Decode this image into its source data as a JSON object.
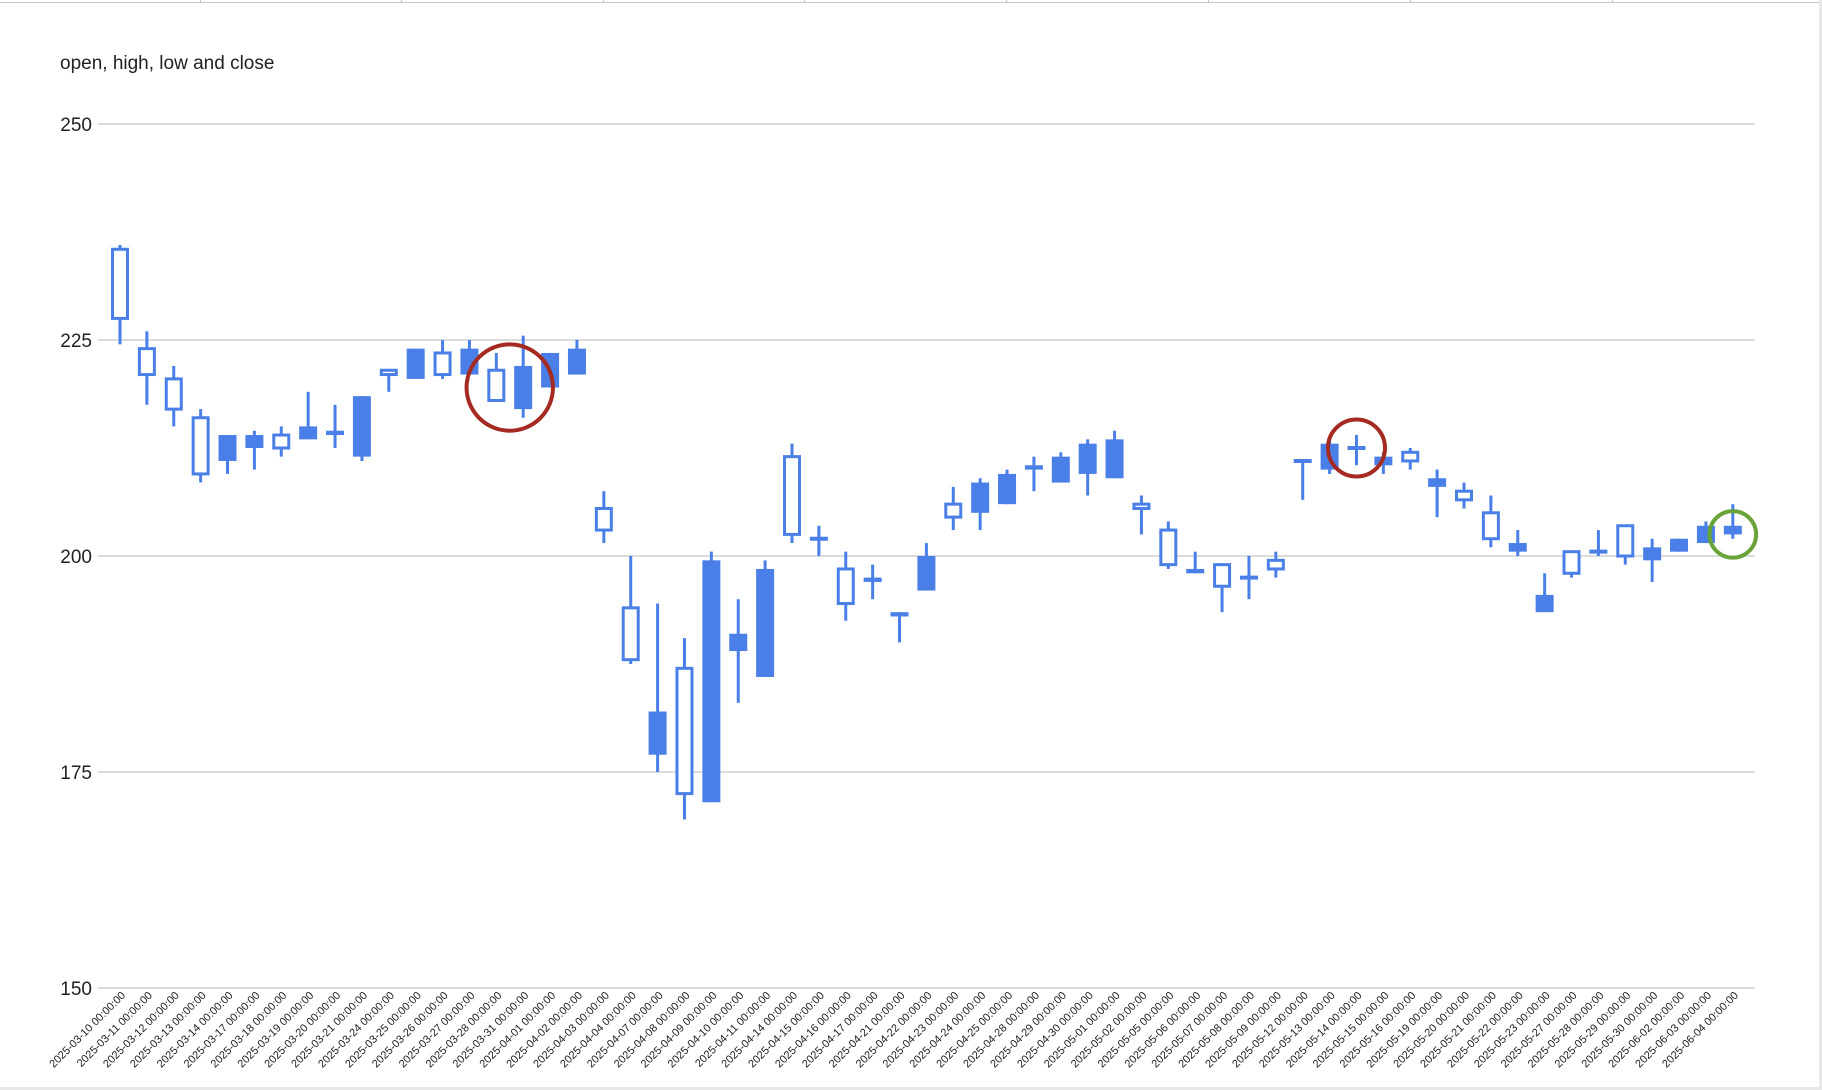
{
  "chart_data": {
    "type": "candlestick",
    "title": "open, high, low and close",
    "xlabel": "",
    "ylabel": "",
    "ylim": [
      150,
      250
    ],
    "yticks": [
      150,
      175,
      200,
      225,
      250
    ],
    "grid": true,
    "legend": "none",
    "colors": {
      "candle": "#4a7fe8",
      "grid": "#c8c8c8",
      "axis_text": "#222222",
      "annotation_red": "#a52a22",
      "annotation_green": "#6aa33a"
    },
    "categories": [
      "2025-03-10 00:00:00",
      "2025-03-11 00:00:00",
      "2025-03-12 00:00:00",
      "2025-03-13 00:00:00",
      "2025-03-14 00:00:00",
      "2025-03-17 00:00:00",
      "2025-03-18 00:00:00",
      "2025-03-19 00:00:00",
      "2025-03-20 00:00:00",
      "2025-03-21 00:00:00",
      "2025-03-24 00:00:00",
      "2025-03-25 00:00:00",
      "2025-03-26 00:00:00",
      "2025-03-27 00:00:00",
      "2025-03-28 00:00:00",
      "2025-03-31 00:00:00",
      "2025-04-01 00:00:00",
      "2025-04-02 00:00:00",
      "2025-04-03 00:00:00",
      "2025-04-04 00:00:00",
      "2025-04-07 00:00:00",
      "2025-04-08 00:00:00",
      "2025-04-09 00:00:00",
      "2025-04-10 00:00:00",
      "2025-04-11 00:00:00",
      "2025-04-14 00:00:00",
      "2025-04-15 00:00:00",
      "2025-04-16 00:00:00",
      "2025-04-17 00:00:00",
      "2025-04-21 00:00:00",
      "2025-04-22 00:00:00",
      "2025-04-23 00:00:00",
      "2025-04-24 00:00:00",
      "2025-04-25 00:00:00",
      "2025-04-28 00:00:00",
      "2025-04-29 00:00:00",
      "2025-04-30 00:00:00",
      "2025-05-01 00:00:00",
      "2025-05-02 00:00:00",
      "2025-05-05 00:00:00",
      "2025-05-06 00:00:00",
      "2025-05-07 00:00:00",
      "2025-05-08 00:00:00",
      "2025-05-09 00:00:00",
      "2025-05-12 00:00:00",
      "2025-05-13 00:00:00",
      "2025-05-14 00:00:00",
      "2025-05-15 00:00:00",
      "2025-05-16 00:00:00",
      "2025-05-19 00:00:00",
      "2025-05-20 00:00:00",
      "2025-05-21 00:00:00",
      "2025-05-22 00:00:00",
      "2025-05-23 00:00:00",
      "2025-05-27 00:00:00",
      "2025-05-28 00:00:00",
      "2025-05-29 00:00:00",
      "2025-05-30 00:00:00",
      "2025-06-02 00:00:00",
      "2025-06-03 00:00:00",
      "2025-06-04 00:00:00"
    ],
    "ohlc": [
      {
        "o": 227.5,
        "h": 236.0,
        "l": 224.5,
        "c": 235.5
      },
      {
        "o": 221.0,
        "h": 226.0,
        "l": 217.5,
        "c": 224.0
      },
      {
        "o": 217.0,
        "h": 222.0,
        "l": 215.0,
        "c": 220.5
      },
      {
        "o": 209.5,
        "h": 217.0,
        "l": 208.5,
        "c": 216.0
      },
      {
        "o": 214.0,
        "h": 214.0,
        "l": 209.5,
        "c": 211.0
      },
      {
        "o": 214.0,
        "h": 214.5,
        "l": 210.0,
        "c": 212.5
      },
      {
        "o": 212.5,
        "h": 215.0,
        "l": 211.5,
        "c": 214.0
      },
      {
        "o": 215.0,
        "h": 219.0,
        "l": 214.0,
        "c": 213.5
      },
      {
        "o": 214.5,
        "h": 217.5,
        "l": 212.5,
        "c": 214.0
      },
      {
        "o": 218.5,
        "h": 218.5,
        "l": 211.0,
        "c": 211.5
      },
      {
        "o": 221.0,
        "h": 221.5,
        "l": 219.0,
        "c": 221.5
      },
      {
        "o": 224.0,
        "h": 224.0,
        "l": 220.5,
        "c": 220.5
      },
      {
        "o": 221.0,
        "h": 225.0,
        "l": 220.5,
        "c": 223.5
      },
      {
        "o": 224.0,
        "h": 225.0,
        "l": 221.0,
        "c": 221.0
      },
      {
        "o": 218.0,
        "h": 223.5,
        "l": 218.0,
        "c": 221.5
      },
      {
        "o": 222.0,
        "h": 225.5,
        "l": 216.0,
        "c": 217.0
      },
      {
        "o": 223.5,
        "h": 223.5,
        "l": 219.5,
        "c": 219.5
      },
      {
        "o": 224.0,
        "h": 225.0,
        "l": 221.0,
        "c": 221.0
      },
      {
        "o": 203.0,
        "h": 207.5,
        "l": 201.5,
        "c": 205.5
      },
      {
        "o": 188.0,
        "h": 200.0,
        "l": 187.5,
        "c": 194.0
      },
      {
        "o": 182.0,
        "h": 194.5,
        "l": 175.0,
        "c": 177.0
      },
      {
        "o": 172.5,
        "h": 190.5,
        "l": 169.5,
        "c": 187.0
      },
      {
        "o": 199.5,
        "h": 200.5,
        "l": 171.5,
        "c": 171.5
      },
      {
        "o": 191.0,
        "h": 195.0,
        "l": 183.0,
        "c": 189.0
      },
      {
        "o": 198.5,
        "h": 199.5,
        "l": 186.0,
        "c": 186.0
      },
      {
        "o": 202.5,
        "h": 213.0,
        "l": 201.5,
        "c": 211.5
      },
      {
        "o": 202.0,
        "h": 203.5,
        "l": 200.0,
        "c": 202.0
      },
      {
        "o": 194.5,
        "h": 200.5,
        "l": 192.5,
        "c": 198.5
      },
      {
        "o": 197.5,
        "h": 199.0,
        "l": 195.0,
        "c": 197.0
      },
      {
        "o": 193.5,
        "h": 193.5,
        "l": 190.0,
        "c": 193.0
      },
      {
        "o": 200.0,
        "h": 201.5,
        "l": 196.0,
        "c": 196.0
      },
      {
        "o": 204.5,
        "h": 208.0,
        "l": 203.0,
        "c": 206.0
      },
      {
        "o": 208.5,
        "h": 209.0,
        "l": 203.0,
        "c": 205.0
      },
      {
        "o": 209.5,
        "h": 210.0,
        "l": 206.0,
        "c": 206.0
      },
      {
        "o": 210.5,
        "h": 211.5,
        "l": 207.5,
        "c": 210.0
      },
      {
        "o": 211.5,
        "h": 212.0,
        "l": 208.5,
        "c": 208.5
      },
      {
        "o": 213.0,
        "h": 213.5,
        "l": 207.0,
        "c": 209.5
      },
      {
        "o": 213.5,
        "h": 214.5,
        "l": 209.0,
        "c": 209.0
      },
      {
        "o": 205.5,
        "h": 207.0,
        "l": 202.5,
        "c": 206.0
      },
      {
        "o": 199.0,
        "h": 204.0,
        "l": 198.5,
        "c": 203.0
      },
      {
        "o": 198.5,
        "h": 200.5,
        "l": 198.0,
        "c": 198.0
      },
      {
        "o": 196.5,
        "h": 199.0,
        "l": 193.5,
        "c": 199.0
      },
      {
        "o": 197.5,
        "h": 200.0,
        "l": 195.0,
        "c": 197.5
      },
      {
        "o": 198.5,
        "h": 200.5,
        "l": 197.5,
        "c": 199.5
      },
      {
        "o": 211.0,
        "h": 211.0,
        "l": 206.5,
        "c": 211.0
      },
      {
        "o": 213.0,
        "h": 213.5,
        "l": 209.5,
        "c": 210.0
      },
      {
        "o": 212.5,
        "h": 214.0,
        "l": 210.5,
        "c": 212.5
      },
      {
        "o": 211.5,
        "h": 212.0,
        "l": 209.5,
        "c": 210.5
      },
      {
        "o": 211.0,
        "h": 212.5,
        "l": 210.0,
        "c": 212.0
      },
      {
        "o": 209.0,
        "h": 210.0,
        "l": 204.5,
        "c": 208.0
      },
      {
        "o": 206.5,
        "h": 208.5,
        "l": 205.5,
        "c": 207.5
      },
      {
        "o": 202.0,
        "h": 207.0,
        "l": 201.0,
        "c": 205.0
      },
      {
        "o": 201.5,
        "h": 203.0,
        "l": 200.0,
        "c": 200.5
      },
      {
        "o": 195.5,
        "h": 198.0,
        "l": 193.5,
        "c": 193.5
      },
      {
        "o": 198.0,
        "h": 200.5,
        "l": 197.5,
        "c": 200.5
      },
      {
        "o": 200.5,
        "h": 203.0,
        "l": 200.0,
        "c": 200.5
      },
      {
        "o": 200.0,
        "h": 203.5,
        "l": 199.0,
        "c": 203.5
      },
      {
        "o": 201.0,
        "h": 202.0,
        "l": 197.0,
        "c": 199.5
      },
      {
        "o": 202.0,
        "h": 202.0,
        "l": 200.5,
        "c": 200.5
      },
      {
        "o": 203.5,
        "h": 204.0,
        "l": 201.5,
        "c": 201.5
      },
      {
        "o": 203.5,
        "h": 206.0,
        "l": 202.0,
        "c": 202.5
      }
    ],
    "annotations": [
      {
        "shape": "circle",
        "color": "red",
        "around": [
          "2025-03-28 00:00:00",
          "2025-03-31 00:00:00"
        ],
        "y": 219.5,
        "r_data": 5
      },
      {
        "shape": "circle",
        "color": "red",
        "around": [
          "2025-05-14 00:00:00"
        ],
        "y": 212.5,
        "r_data": 3.3
      },
      {
        "shape": "circle",
        "color": "green",
        "around": [
          "2025-06-04 00:00:00"
        ],
        "y": 202.5,
        "r_data": 2.7
      }
    ]
  }
}
